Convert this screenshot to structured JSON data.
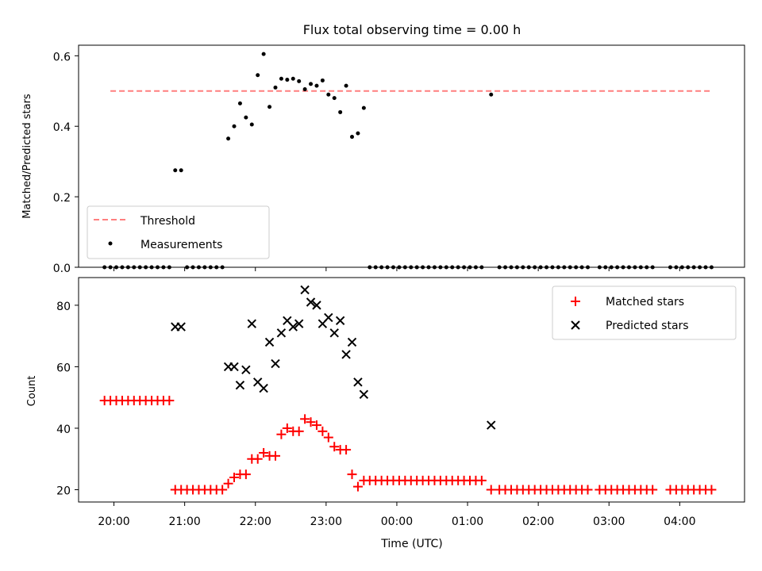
{
  "chart_data": [
    {
      "type": "scatter",
      "title": "Flux total observing time = 0.00 h",
      "ylabel": "Matched/Predicted stars",
      "xlim": [
        "19:30",
        "04:55"
      ],
      "ylim": [
        0,
        0.63
      ],
      "yticks": [
        0.0,
        0.2,
        0.4,
        0.6
      ],
      "xticks": [],
      "grid": false,
      "legend_position": "lower-left",
      "threshold_color": "#ff7f7f",
      "measurement_color": "#000000",
      "series": [
        {
          "name": "Threshold",
          "style": "dashed-line",
          "x": [
            "19:57",
            "04:26"
          ],
          "y": [
            0.5,
            0.5
          ]
        },
        {
          "name": "Measurements",
          "style": "dots",
          "x": [
            "20:52",
            "20:57",
            "21:37",
            "21:42",
            "21:47",
            "21:52",
            "21:57",
            "22:02",
            "22:07",
            "22:12",
            "22:17",
            "22:22",
            "22:27",
            "22:32",
            "22:37",
            "22:42",
            "22:47",
            "22:52",
            "22:57",
            "23:02",
            "23:07",
            "23:12",
            "23:17",
            "23:22",
            "23:27",
            "23:32",
            "01:20"
          ],
          "y": [
            0.275,
            0.275,
            0.365,
            0.4,
            0.465,
            0.425,
            0.405,
            0.545,
            0.605,
            0.455,
            0.51,
            0.535,
            0.532,
            0.535,
            0.528,
            0.505,
            0.52,
            0.515,
            0.53,
            0.49,
            0.48,
            0.44,
            0.515,
            0.37,
            0.38,
            0.452,
            0.49
          ]
        },
        {
          "name": "",
          "style": "dots",
          "x": [
            "19:52",
            "19:57",
            "20:02",
            "20:07",
            "20:12",
            "20:17",
            "20:22",
            "20:27",
            "20:32",
            "20:37",
            "20:42",
            "20:47",
            "21:02",
            "21:07",
            "21:12",
            "21:17",
            "21:22",
            "21:27",
            "21:32",
            "23:37",
            "23:42",
            "23:47",
            "23:52",
            "23:57",
            "00:02",
            "00:07",
            "00:12",
            "00:17",
            "00:22",
            "00:27",
            "00:32",
            "00:37",
            "00:42",
            "00:47",
            "00:52",
            "00:57",
            "01:02",
            "01:07",
            "01:12",
            "01:27",
            "01:32",
            "01:37",
            "01:42",
            "01:47",
            "01:52",
            "01:57",
            "02:02",
            "02:07",
            "02:12",
            "02:17",
            "02:22",
            "02:27",
            "02:32",
            "02:37",
            "02:42",
            "02:52",
            "02:57",
            "03:02",
            "03:07",
            "03:12",
            "03:17",
            "03:22",
            "03:27",
            "03:32",
            "03:37",
            "03:52",
            "03:57",
            "04:02",
            "04:07",
            "04:12",
            "04:17",
            "04:22",
            "04:27"
          ],
          "y": [
            0,
            0,
            0,
            0,
            0,
            0,
            0,
            0,
            0,
            0,
            0,
            0,
            0,
            0,
            0,
            0,
            0,
            0,
            0,
            0,
            0,
            0,
            0,
            0,
            0,
            0,
            0,
            0,
            0,
            0,
            0,
            0,
            0,
            0,
            0,
            0,
            0,
            0,
            0,
            0,
            0,
            0,
            0,
            0,
            0,
            0,
            0,
            0,
            0,
            0,
            0,
            0,
            0,
            0,
            0,
            0,
            0,
            0,
            0,
            0,
            0,
            0,
            0,
            0,
            0,
            0,
            0,
            0,
            0,
            0,
            0,
            0,
            0
          ]
        }
      ]
    },
    {
      "type": "scatter",
      "title": "",
      "xlabel": "Time (UTC)",
      "ylabel": "Count",
      "xlim": [
        "19:30",
        "04:55"
      ],
      "ylim": [
        16,
        89
      ],
      "yticks": [
        20,
        40,
        60,
        80
      ],
      "xticks": [
        "20:00",
        "21:00",
        "22:00",
        "23:00",
        "00:00",
        "01:00",
        "02:00",
        "03:00",
        "04:00"
      ],
      "grid": false,
      "legend_position": "top-right",
      "matched_color": "#ff0000",
      "predicted_color": "#000000",
      "series": [
        {
          "name": "Matched stars",
          "marker": "+",
          "x": [
            "19:52",
            "19:57",
            "20:02",
            "20:07",
            "20:12",
            "20:17",
            "20:22",
            "20:27",
            "20:32",
            "20:37",
            "20:42",
            "20:47",
            "20:52",
            "20:57",
            "21:02",
            "21:07",
            "21:12",
            "21:17",
            "21:22",
            "21:27",
            "21:32",
            "21:37",
            "21:42",
            "21:47",
            "21:52",
            "21:57",
            "22:02",
            "22:07",
            "22:12",
            "22:17",
            "22:22",
            "22:27",
            "22:32",
            "22:37",
            "22:42",
            "22:47",
            "22:52",
            "22:57",
            "23:02",
            "23:07",
            "23:12",
            "23:17",
            "23:22",
            "23:27",
            "23:32",
            "23:37",
            "23:42",
            "23:47",
            "23:52",
            "23:57",
            "00:02",
            "00:07",
            "00:12",
            "00:17",
            "00:22",
            "00:27",
            "00:32",
            "00:37",
            "00:42",
            "00:47",
            "00:52",
            "00:57",
            "01:02",
            "01:07",
            "01:12",
            "01:20",
            "01:27",
            "01:32",
            "01:37",
            "01:42",
            "01:47",
            "01:52",
            "01:57",
            "02:02",
            "02:07",
            "02:12",
            "02:17",
            "02:22",
            "02:27",
            "02:32",
            "02:37",
            "02:42",
            "02:52",
            "02:57",
            "03:02",
            "03:07",
            "03:12",
            "03:17",
            "03:22",
            "03:27",
            "03:32",
            "03:37",
            "03:52",
            "03:57",
            "04:02",
            "04:07",
            "04:12",
            "04:17",
            "04:22",
            "04:27"
          ],
          "y": [
            49,
            49,
            49,
            49,
            49,
            49,
            49,
            49,
            49,
            49,
            49,
            49,
            20,
            20,
            20,
            20,
            20,
            20,
            20,
            20,
            20,
            22,
            24,
            25,
            25,
            30,
            30,
            32,
            31,
            31,
            38,
            40,
            39,
            39,
            43,
            42,
            41,
            39,
            37,
            34,
            33,
            33,
            25,
            21,
            23,
            23,
            23,
            23,
            23,
            23,
            23,
            23,
            23,
            23,
            23,
            23,
            23,
            23,
            23,
            23,
            23,
            23,
            23,
            23,
            23,
            20,
            20,
            20,
            20,
            20,
            20,
            20,
            20,
            20,
            20,
            20,
            20,
            20,
            20,
            20,
            20,
            20,
            20,
            20,
            20,
            20,
            20,
            20,
            20,
            20,
            20,
            20,
            20,
            20,
            20,
            20,
            20,
            20,
            20,
            20
          ]
        },
        {
          "name": "Predicted stars",
          "marker": "x",
          "x": [
            "20:52",
            "20:57",
            "21:37",
            "21:42",
            "21:47",
            "21:52",
            "21:57",
            "22:02",
            "22:07",
            "22:12",
            "22:17",
            "22:22",
            "22:27",
            "22:32",
            "22:37",
            "22:42",
            "22:47",
            "22:52",
            "22:57",
            "23:02",
            "23:07",
            "23:12",
            "23:17",
            "23:22",
            "23:27",
            "23:32",
            "01:20"
          ],
          "y": [
            73,
            73,
            60,
            60,
            54,
            59,
            74,
            55,
            53,
            68,
            61,
            71,
            75,
            73,
            74,
            85,
            81,
            80,
            74,
            76,
            71,
            75,
            64,
            68,
            55,
            51,
            41
          ]
        }
      ]
    }
  ]
}
